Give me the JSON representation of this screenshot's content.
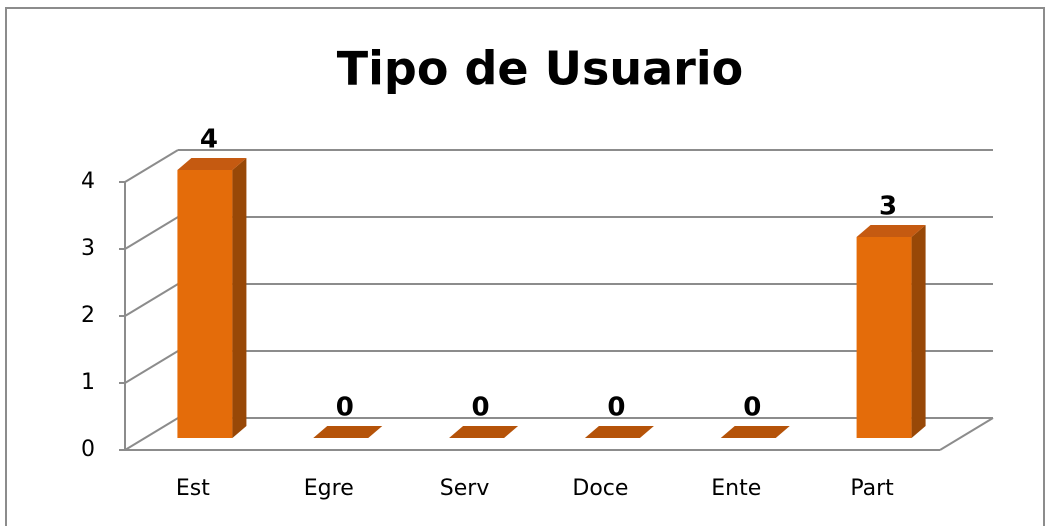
{
  "chart_data": {
    "type": "bar3d",
    "title": "Tipo de Usuario",
    "categories": [
      "Est",
      "Egre",
      "Serv",
      "Doce",
      "Ente",
      "Part"
    ],
    "values": [
      4,
      0,
      0,
      0,
      0,
      3
    ],
    "color": "#e46c0a",
    "ylim": [
      0,
      4
    ],
    "yticks": [
      0,
      1,
      2,
      3,
      4
    ],
    "grid": true
  }
}
